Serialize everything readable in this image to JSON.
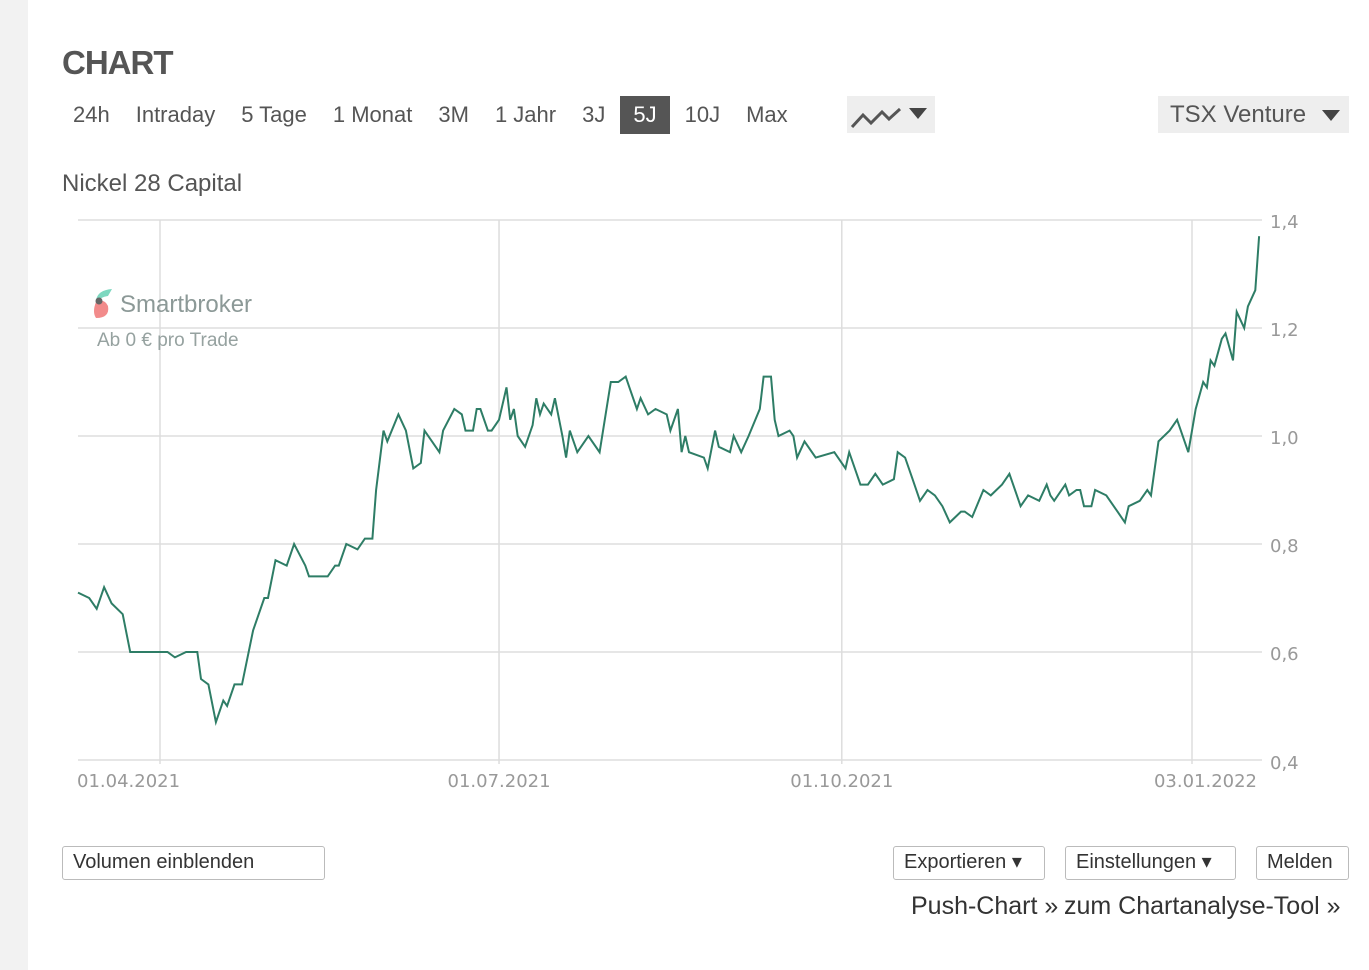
{
  "header": {
    "title": "CHART"
  },
  "range_tabs": [
    {
      "label": "24h",
      "active": false
    },
    {
      "label": "Intraday",
      "active": false
    },
    {
      "label": "5 Tage",
      "active": false
    },
    {
      "label": "1 Monat",
      "active": false
    },
    {
      "label": "3M",
      "active": false
    },
    {
      "label": "1 Jahr",
      "active": false
    },
    {
      "label": "3J",
      "active": false
    },
    {
      "label": "5J",
      "active": true
    },
    {
      "label": "10J",
      "active": false
    },
    {
      "label": "Max",
      "active": false
    }
  ],
  "chart_type_selector": {
    "icon": "line-chart-icon"
  },
  "exchange_select": {
    "value": "TSX Venture"
  },
  "instrument_name": "Nickel 28 Capital",
  "watermark": {
    "brand": "Smartbroker",
    "tagline": "Ab 0 € pro Trade",
    "colors": [
      "#7dd8c0",
      "#f28b8b"
    ]
  },
  "chart_data": {
    "type": "line",
    "title": "",
    "xlabel": "",
    "ylabel": "",
    "ylim": [
      0.4,
      1.4
    ],
    "y_ticks": [
      "1,4",
      "1,2",
      "1,0",
      "0,8",
      "0,6",
      "0,4"
    ],
    "y_tick_values": [
      1.4,
      1.2,
      1.0,
      0.8,
      0.6,
      0.4
    ],
    "x_ticks": [
      {
        "label": "01.04.2021",
        "date": "2021-04-01"
      },
      {
        "label": "01.07.2021",
        "date": "2021-07-01"
      },
      {
        "label": "01.10.2021",
        "date": "2021-10-01"
      },
      {
        "label": "03.01.2022",
        "date": "2022-01-03"
      }
    ],
    "grid": true,
    "line_color": "#2e7d66",
    "series": [
      {
        "points": [
          [
            "2021-03-10",
            0.71
          ],
          [
            "2021-03-13",
            0.7
          ],
          [
            "2021-03-15",
            0.68
          ],
          [
            "2021-03-17",
            0.72
          ],
          [
            "2021-03-19",
            0.69
          ],
          [
            "2021-03-22",
            0.67
          ],
          [
            "2021-03-24",
            0.6
          ],
          [
            "2021-03-26",
            0.6
          ],
          [
            "2021-03-31",
            0.6
          ],
          [
            "2021-04-03",
            0.6
          ],
          [
            "2021-04-05",
            0.59
          ],
          [
            "2021-04-08",
            0.6
          ],
          [
            "2021-04-11",
            0.6
          ],
          [
            "2021-04-12",
            0.55
          ],
          [
            "2021-04-14",
            0.54
          ],
          [
            "2021-04-16",
            0.47
          ],
          [
            "2021-04-18",
            0.51
          ],
          [
            "2021-04-19",
            0.5
          ],
          [
            "2021-04-21",
            0.54
          ],
          [
            "2021-04-23",
            0.54
          ],
          [
            "2021-04-26",
            0.64
          ],
          [
            "2021-04-29",
            0.7
          ],
          [
            "2021-04-30",
            0.7
          ],
          [
            "2021-05-02",
            0.77
          ],
          [
            "2021-05-05",
            0.76
          ],
          [
            "2021-05-07",
            0.8
          ],
          [
            "2021-05-10",
            0.76
          ],
          [
            "2021-05-11",
            0.74
          ],
          [
            "2021-05-16",
            0.74
          ],
          [
            "2021-05-18",
            0.76
          ],
          [
            "2021-05-19",
            0.76
          ],
          [
            "2021-05-21",
            0.8
          ],
          [
            "2021-05-24",
            0.79
          ],
          [
            "2021-05-26",
            0.81
          ],
          [
            "2021-05-28",
            0.81
          ],
          [
            "2021-05-29",
            0.9
          ],
          [
            "2021-05-31",
            1.01
          ],
          [
            "2021-06-01",
            0.99
          ],
          [
            "2021-06-04",
            1.04
          ],
          [
            "2021-06-06",
            1.01
          ],
          [
            "2021-06-08",
            0.94
          ],
          [
            "2021-06-10",
            0.95
          ],
          [
            "2021-06-11",
            1.01
          ],
          [
            "2021-06-13",
            0.99
          ],
          [
            "2021-06-15",
            0.97
          ],
          [
            "2021-06-16",
            1.01
          ],
          [
            "2021-06-19",
            1.05
          ],
          [
            "2021-06-21",
            1.04
          ],
          [
            "2021-06-22",
            1.01
          ],
          [
            "2021-06-24",
            1.01
          ],
          [
            "2021-06-25",
            1.05
          ],
          [
            "2021-06-26",
            1.05
          ],
          [
            "2021-06-28",
            1.01
          ],
          [
            "2021-06-29",
            1.01
          ],
          [
            "2021-07-01",
            1.03
          ],
          [
            "2021-07-03",
            1.09
          ],
          [
            "2021-07-04",
            1.03
          ],
          [
            "2021-07-05",
            1.05
          ],
          [
            "2021-07-06",
            1.0
          ],
          [
            "2021-07-08",
            0.98
          ],
          [
            "2021-07-10",
            1.02
          ],
          [
            "2021-07-11",
            1.07
          ],
          [
            "2021-07-12",
            1.04
          ],
          [
            "2021-07-13",
            1.06
          ],
          [
            "2021-07-15",
            1.04
          ],
          [
            "2021-07-16",
            1.07
          ],
          [
            "2021-07-18",
            1.0
          ],
          [
            "2021-07-19",
            0.96
          ],
          [
            "2021-07-20",
            1.01
          ],
          [
            "2021-07-22",
            0.97
          ],
          [
            "2021-07-25",
            1.0
          ],
          [
            "2021-07-28",
            0.97
          ],
          [
            "2021-07-31",
            1.1
          ],
          [
            "2021-08-02",
            1.1
          ],
          [
            "2021-08-04",
            1.11
          ],
          [
            "2021-08-05",
            1.09
          ],
          [
            "2021-08-07",
            1.05
          ],
          [
            "2021-08-08",
            1.07
          ],
          [
            "2021-08-10",
            1.04
          ],
          [
            "2021-08-12",
            1.05
          ],
          [
            "2021-08-15",
            1.04
          ],
          [
            "2021-08-16",
            1.01
          ],
          [
            "2021-08-18",
            1.05
          ],
          [
            "2021-08-19",
            0.97
          ],
          [
            "2021-08-20",
            1.0
          ],
          [
            "2021-08-21",
            0.97
          ],
          [
            "2021-08-25",
            0.96
          ],
          [
            "2021-08-26",
            0.94
          ],
          [
            "2021-08-28",
            1.01
          ],
          [
            "2021-08-29",
            0.98
          ],
          [
            "2021-09-01",
            0.97
          ],
          [
            "2021-09-02",
            1.0
          ],
          [
            "2021-09-04",
            0.97
          ],
          [
            "2021-09-06",
            1.0
          ],
          [
            "2021-09-09",
            1.05
          ],
          [
            "2021-09-10",
            1.11
          ],
          [
            "2021-09-12",
            1.11
          ],
          [
            "2021-09-13",
            1.03
          ],
          [
            "2021-09-14",
            1.0
          ],
          [
            "2021-09-17",
            1.01
          ],
          [
            "2021-09-18",
            1.0
          ],
          [
            "2021-09-19",
            0.96
          ],
          [
            "2021-09-21",
            0.99
          ],
          [
            "2021-09-24",
            0.96
          ],
          [
            "2021-09-29",
            0.97
          ],
          [
            "2021-10-02",
            0.94
          ],
          [
            "2021-10-03",
            0.97
          ],
          [
            "2021-10-05",
            0.93
          ],
          [
            "2021-10-06",
            0.91
          ],
          [
            "2021-10-08",
            0.91
          ],
          [
            "2021-10-10",
            0.93
          ],
          [
            "2021-10-12",
            0.91
          ],
          [
            "2021-10-15",
            0.92
          ],
          [
            "2021-10-16",
            0.97
          ],
          [
            "2021-10-18",
            0.96
          ],
          [
            "2021-10-20",
            0.92
          ],
          [
            "2021-10-22",
            0.88
          ],
          [
            "2021-10-24",
            0.9
          ],
          [
            "2021-10-26",
            0.89
          ],
          [
            "2021-10-28",
            0.87
          ],
          [
            "2021-10-30",
            0.84
          ],
          [
            "2021-11-02",
            0.86
          ],
          [
            "2021-11-03",
            0.86
          ],
          [
            "2021-11-05",
            0.85
          ],
          [
            "2021-11-08",
            0.9
          ],
          [
            "2021-11-10",
            0.89
          ],
          [
            "2021-11-13",
            0.91
          ],
          [
            "2021-11-15",
            0.93
          ],
          [
            "2021-11-17",
            0.89
          ],
          [
            "2021-11-18",
            0.87
          ],
          [
            "2021-11-20",
            0.89
          ],
          [
            "2021-11-23",
            0.88
          ],
          [
            "2021-11-25",
            0.91
          ],
          [
            "2021-11-26",
            0.89
          ],
          [
            "2021-11-27",
            0.88
          ],
          [
            "2021-11-30",
            0.91
          ],
          [
            "2021-12-01",
            0.89
          ],
          [
            "2021-12-03",
            0.9
          ],
          [
            "2021-12-04",
            0.9
          ],
          [
            "2021-12-05",
            0.87
          ],
          [
            "2021-12-07",
            0.87
          ],
          [
            "2021-12-08",
            0.9
          ],
          [
            "2021-12-11",
            0.89
          ],
          [
            "2021-12-14",
            0.86
          ],
          [
            "2021-12-16",
            0.84
          ],
          [
            "2021-12-17",
            0.87
          ],
          [
            "2021-12-20",
            0.88
          ],
          [
            "2021-12-22",
            0.9
          ],
          [
            "2021-12-23",
            0.89
          ],
          [
            "2021-12-25",
            0.99
          ],
          [
            "2021-12-28",
            1.01
          ],
          [
            "2021-12-30",
            1.03
          ],
          [
            "2022-01-02",
            0.97
          ],
          [
            "2022-01-04",
            1.05
          ],
          [
            "2022-01-06",
            1.1
          ],
          [
            "2022-01-07",
            1.09
          ],
          [
            "2022-01-08",
            1.14
          ],
          [
            "2022-01-09",
            1.13
          ],
          [
            "2022-01-11",
            1.18
          ],
          [
            "2022-01-12",
            1.19
          ],
          [
            "2022-01-14",
            1.14
          ],
          [
            "2022-01-15",
            1.23
          ],
          [
            "2022-01-17",
            1.2
          ],
          [
            "2022-01-18",
            1.24
          ],
          [
            "2022-01-20",
            1.27
          ],
          [
            "2022-01-21",
            1.37
          ]
        ]
      }
    ]
  },
  "footer": {
    "volume_button": "Volumen einblenden",
    "export_button": "Exportieren ▾",
    "settings_button": "Einstellungen ▾",
    "report_button": "Melden",
    "push_chart_link": "Push-Chart »",
    "analysis_tool_link": "zum Chartanalyse-Tool »"
  }
}
